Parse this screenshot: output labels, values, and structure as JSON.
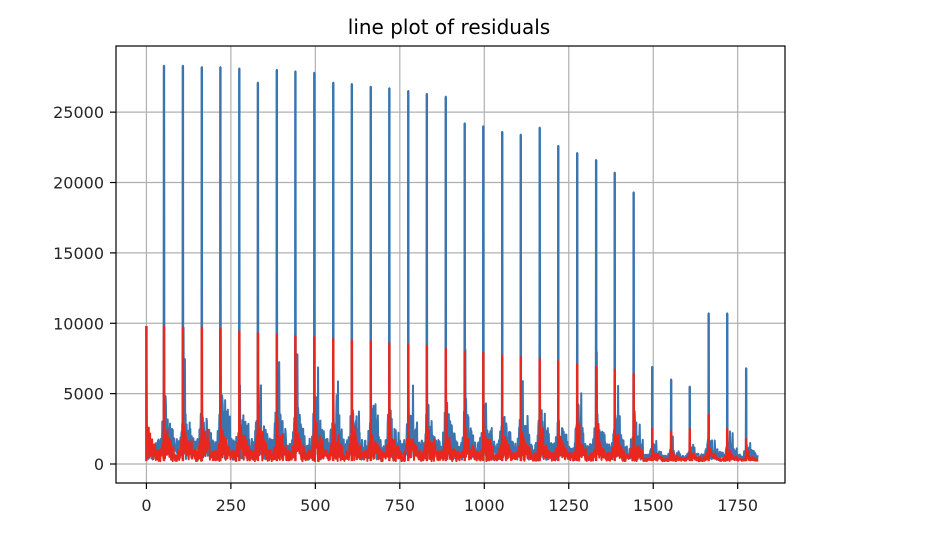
{
  "chart_data": {
    "type": "line",
    "title": "line plot of residuals",
    "xlabel": "",
    "ylabel": "",
    "xlim": [
      -90,
      1890
    ],
    "ylim": [
      -1350,
      29700
    ],
    "grid": true,
    "xticks": [
      0,
      250,
      500,
      750,
      1000,
      1250,
      1500,
      1750
    ],
    "xtick_labels": [
      "0",
      "250",
      "500",
      "750",
      "1000",
      "1250",
      "1500",
      "1750"
    ],
    "yticks": [
      0,
      5000,
      10000,
      15000,
      20000,
      25000
    ],
    "ytick_labels": [
      "0",
      "5000",
      "10000",
      "15000",
      "20000",
      "25000"
    ],
    "n_points": 1810,
    "period": 56,
    "series": [
      {
        "color": "#3b75af",
        "baseline": 300,
        "peaks": [
          {
            "x": 0,
            "y": 9800
          },
          {
            "x": 52,
            "y": 28300
          },
          {
            "x": 108,
            "y": 28300
          },
          {
            "x": 164,
            "y": 28200
          },
          {
            "x": 219,
            "y": 28200
          },
          {
            "x": 275,
            "y": 28100
          },
          {
            "x": 330,
            "y": 27100
          },
          {
            "x": 386,
            "y": 28000
          },
          {
            "x": 441,
            "y": 27900
          },
          {
            "x": 497,
            "y": 27800
          },
          {
            "x": 553,
            "y": 27100
          },
          {
            "x": 608,
            "y": 27000
          },
          {
            "x": 664,
            "y": 26800
          },
          {
            "x": 719,
            "y": 26700
          },
          {
            "x": 775,
            "y": 26500
          },
          {
            "x": 830,
            "y": 26300
          },
          {
            "x": 886,
            "y": 26100
          },
          {
            "x": 942,
            "y": 24200
          },
          {
            "x": 997,
            "y": 24000
          },
          {
            "x": 1053,
            "y": 23600
          },
          {
            "x": 1108,
            "y": 23400
          },
          {
            "x": 1164,
            "y": 23900
          },
          {
            "x": 1219,
            "y": 22600
          },
          {
            "x": 1275,
            "y": 22100
          },
          {
            "x": 1331,
            "y": 21600
          },
          {
            "x": 1386,
            "y": 20700
          },
          {
            "x": 1442,
            "y": 19300
          },
          {
            "x": 1497,
            "y": 6900
          },
          {
            "x": 1553,
            "y": 6000
          },
          {
            "x": 1608,
            "y": 5500
          },
          {
            "x": 1664,
            "y": 10700
          },
          {
            "x": 1719,
            "y": 10700
          },
          {
            "x": 1775,
            "y": 6800
          }
        ]
      },
      {
        "color": "#e8281e",
        "baseline": 200,
        "peaks": [
          {
            "x": 0,
            "y": 9800
          },
          {
            "x": 52,
            "y": 9800
          },
          {
            "x": 108,
            "y": 9700
          },
          {
            "x": 164,
            "y": 9700
          },
          {
            "x": 219,
            "y": 9600
          },
          {
            "x": 275,
            "y": 9400
          },
          {
            "x": 330,
            "y": 9300
          },
          {
            "x": 386,
            "y": 9200
          },
          {
            "x": 441,
            "y": 9100
          },
          {
            "x": 497,
            "y": 9000
          },
          {
            "x": 553,
            "y": 8900
          },
          {
            "x": 608,
            "y": 8800
          },
          {
            "x": 664,
            "y": 8700
          },
          {
            "x": 719,
            "y": 8600
          },
          {
            "x": 775,
            "y": 8500
          },
          {
            "x": 830,
            "y": 8400
          },
          {
            "x": 886,
            "y": 8200
          },
          {
            "x": 942,
            "y": 8000
          },
          {
            "x": 997,
            "y": 7900
          },
          {
            "x": 1053,
            "y": 7700
          },
          {
            "x": 1108,
            "y": 7600
          },
          {
            "x": 1164,
            "y": 7500
          },
          {
            "x": 1219,
            "y": 7300
          },
          {
            "x": 1275,
            "y": 7100
          },
          {
            "x": 1331,
            "y": 6900
          },
          {
            "x": 1386,
            "y": 6700
          },
          {
            "x": 1442,
            "y": 6400
          },
          {
            "x": 1497,
            "y": 2500
          },
          {
            "x": 1553,
            "y": 2300
          },
          {
            "x": 1608,
            "y": 2500
          },
          {
            "x": 1664,
            "y": 3500
          },
          {
            "x": 1719,
            "y": 2500
          },
          {
            "x": 1775,
            "y": 1800
          }
        ]
      }
    ]
  }
}
